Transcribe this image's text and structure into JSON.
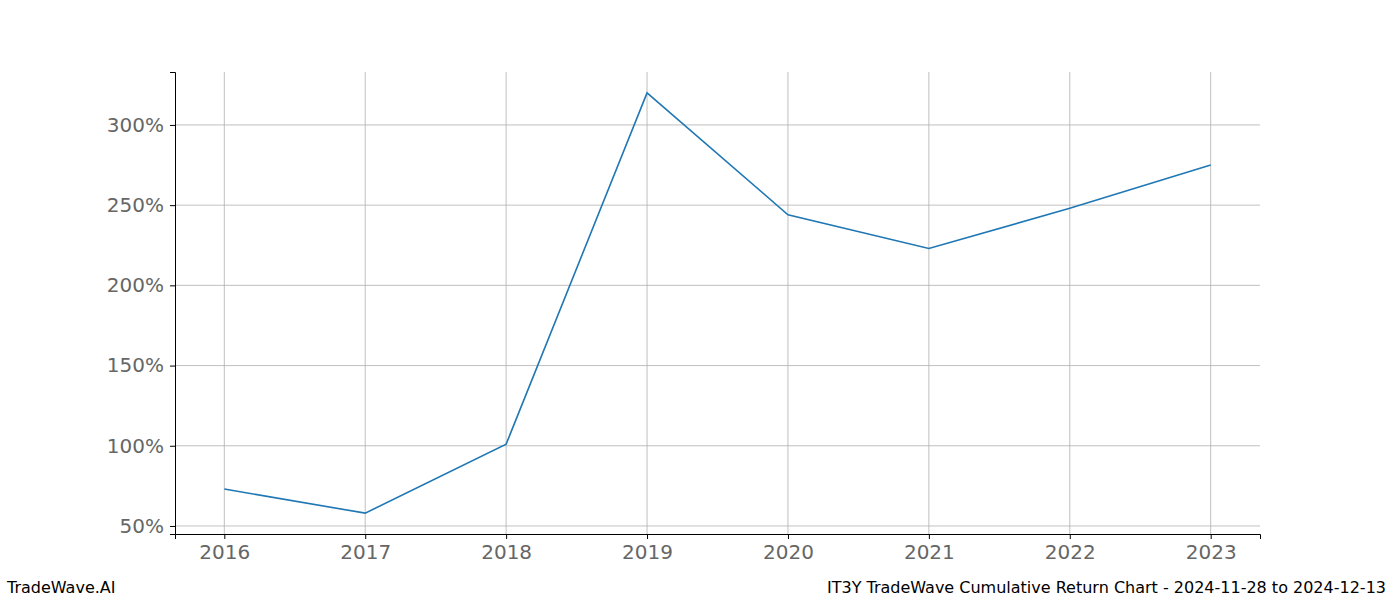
{
  "chart_data": {
    "type": "line",
    "x": [
      2016,
      2017,
      2018,
      2019,
      2020,
      2021,
      2022,
      2023
    ],
    "values": [
      73,
      58,
      101,
      320,
      244,
      223,
      248,
      275
    ],
    "color": "#1f77b4",
    "xlim": [
      2015.65,
      2023.35
    ],
    "xticks": [
      2016,
      2017,
      2018,
      2019,
      2020,
      2021,
      2022,
      2023
    ],
    "ylim": [
      45,
      333
    ],
    "yticks": [
      {
        "value": 50,
        "label": "50%"
      },
      {
        "value": 100,
        "label": "100%"
      },
      {
        "value": 150,
        "label": "150%"
      },
      {
        "value": 200,
        "label": "200%"
      },
      {
        "value": 250,
        "label": "250%"
      },
      {
        "value": 300,
        "label": "300%"
      }
    ],
    "grid": true,
    "annotations": [
      "TradeWave.AI",
      "IT3Y TradeWave Cumulative Return Chart - 2024-11-28 to 2024-12-13"
    ]
  }
}
